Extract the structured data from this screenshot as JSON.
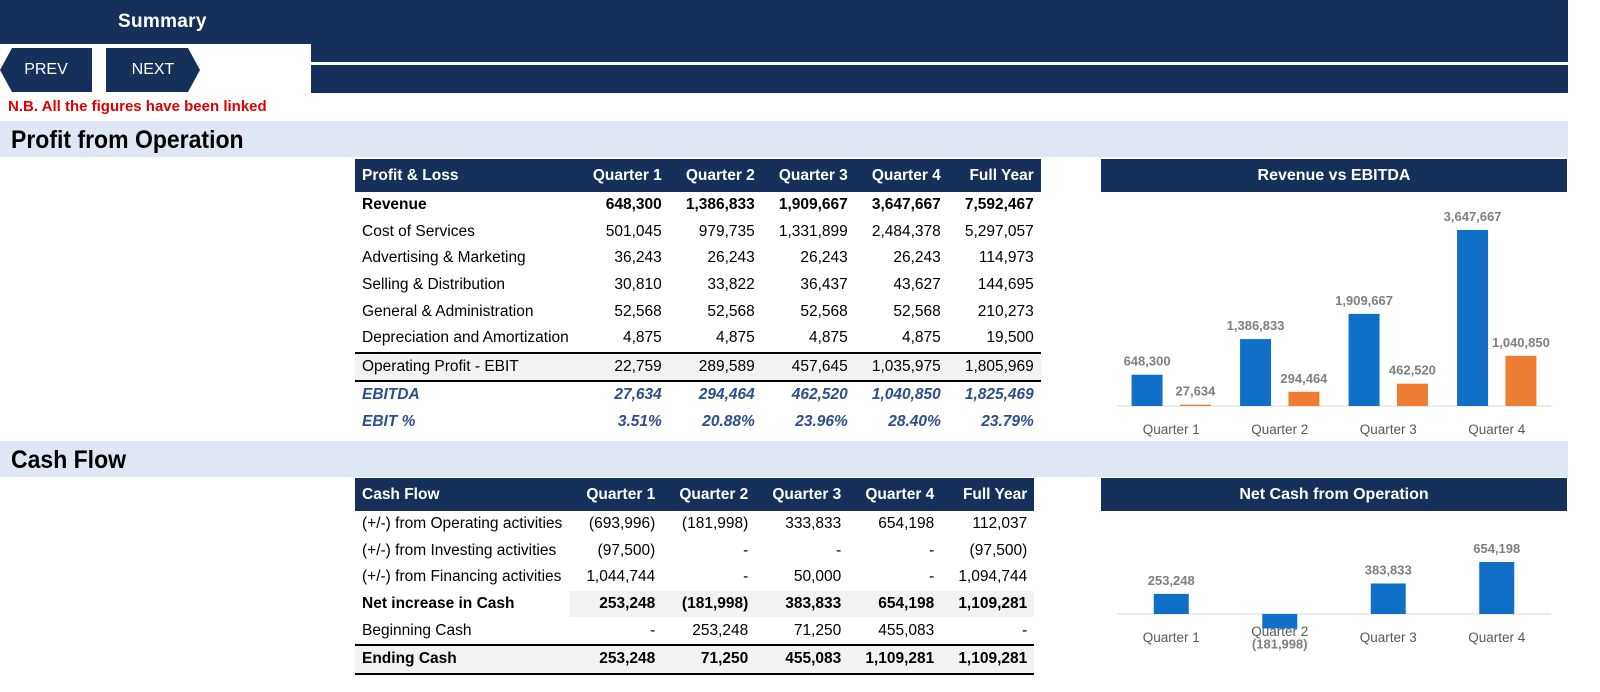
{
  "header": {
    "title": "Summary"
  },
  "nav": {
    "prev_label": "PREV",
    "next_label": "NEXT"
  },
  "note": "N.B. All the figures have been linked",
  "sections": {
    "profit": "Profit from Operation",
    "cash": "Cash Flow"
  },
  "pl_table": {
    "columns": [
      "Profit & Loss",
      "Quarter 1",
      "Quarter 2",
      "Quarter 3",
      "Quarter 4",
      "Full Year"
    ],
    "rows": [
      [
        "Revenue",
        "648,300",
        "1,386,833",
        "1,909,667",
        "3,647,667",
        "7,592,467"
      ],
      [
        "Cost of Services",
        "501,045",
        "979,735",
        "1,331,899",
        "2,484,378",
        "5,297,057"
      ],
      [
        "Advertising & Marketing",
        "36,243",
        "26,243",
        "26,243",
        "26,243",
        "114,973"
      ],
      [
        "Selling & Distribution",
        "30,810",
        "33,822",
        "36,437",
        "43,627",
        "144,695"
      ],
      [
        "General & Administration",
        "52,568",
        "52,568",
        "52,568",
        "52,568",
        "210,273"
      ],
      [
        "Depreciation and Amortization",
        "4,875",
        "4,875",
        "4,875",
        "4,875",
        "19,500"
      ],
      [
        "Operating Profit - EBIT",
        "22,759",
        "289,589",
        "457,645",
        "1,035,975",
        "1,805,969"
      ],
      [
        "EBITDA",
        "27,634",
        "294,464",
        "462,520",
        "1,040,850",
        "1,825,469"
      ],
      [
        "EBIT %",
        "3.51%",
        "20.88%",
        "23.96%",
        "28.40%",
        "23.79%"
      ]
    ]
  },
  "cf_table": {
    "columns": [
      "Cash Flow",
      "Quarter 1",
      "Quarter 2",
      "Quarter 3",
      "Quarter 4",
      "Full Year"
    ],
    "rows": [
      [
        "(+/-) from Operating activities",
        "(693,996)",
        "(181,998)",
        "333,833",
        "654,198",
        "112,037"
      ],
      [
        "(+/-) from Investing activities",
        "(97,500)",
        "-",
        "-",
        "-",
        "(97,500)"
      ],
      [
        "(+/-) from Financing activities",
        "1,044,744",
        "-",
        "50,000",
        "-",
        "1,094,744"
      ],
      [
        "Net increase in Cash",
        "253,248",
        "(181,998)",
        "383,833",
        "654,198",
        "1,109,281"
      ],
      [
        "Beginning Cash",
        "-",
        "253,248",
        "71,250",
        "455,083",
        "-"
      ],
      [
        "Ending Cash",
        "253,248",
        "71,250",
        "455,083",
        "1,109,281",
        "1,109,281"
      ]
    ]
  },
  "colors": {
    "navy": "#15305a",
    "blue_bar": "#1070c8",
    "orange_bar": "#ed7d31",
    "note_red": "#e00000",
    "section_bg": "#dfe6f4"
  },
  "chart_data": [
    {
      "type": "bar",
      "title": "Revenue vs EBITDA",
      "categories": [
        "Quarter 1",
        "Quarter 2",
        "Quarter 3",
        "Quarter 4"
      ],
      "series": [
        {
          "values": [
            648300,
            1386833,
            1909667,
            3647667
          ],
          "labels": [
            "648,300",
            "1,386,833",
            "1,909,667",
            "3,647,667"
          ],
          "color": "#1070c8"
        },
        {
          "values": [
            27634,
            294464,
            462520,
            1040850
          ],
          "labels": [
            "27,634",
            "294,464",
            "462,520",
            "1,040,850"
          ],
          "color": "#ed7d31"
        }
      ],
      "ylim": [
        0,
        3647667
      ],
      "grid": false,
      "legend": "none"
    },
    {
      "type": "bar",
      "title": "Net Cash from Operation",
      "categories": [
        "Quarter 1",
        "Quarter 2",
        "Quarter 3",
        "Quarter 4"
      ],
      "series": [
        {
          "values": [
            253248,
            -181998,
            383833,
            654198
          ],
          "labels": [
            "253,248",
            "(181,998)",
            "383,833",
            "654,198"
          ],
          "color": "#1070c8"
        }
      ],
      "ylim": [
        -181998,
        654198
      ],
      "grid": false,
      "legend": "none"
    }
  ]
}
